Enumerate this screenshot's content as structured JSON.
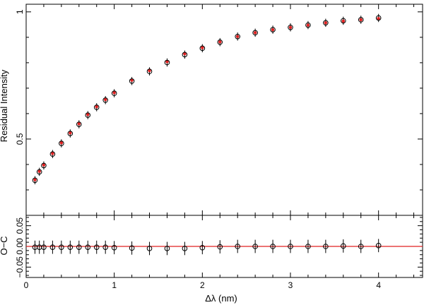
{
  "chart_data": [
    {
      "type": "scatter",
      "panel": "top",
      "xlabel": "Δλ (nm)",
      "ylabel": "Residual Intensity",
      "xlim": [
        0,
        4.5
      ],
      "ylim": [
        0.2,
        1.03
      ],
      "yticks": [
        0.5,
        1
      ],
      "ytick_labels": [
        "0.5",
        "1"
      ],
      "series": [
        {
          "x": [
            0.1,
            0.15,
            0.2,
            0.3,
            0.4,
            0.5,
            0.6,
            0.7,
            0.8,
            0.9,
            1.0,
            1.2,
            1.4,
            1.6,
            1.8,
            2.0,
            2.2,
            2.4,
            2.6,
            2.8,
            3.0,
            3.2,
            3.4,
            3.6,
            3.8,
            4.0
          ],
          "observed": [
            0.338,
            0.371,
            0.396,
            0.441,
            0.483,
            0.522,
            0.558,
            0.594,
            0.625,
            0.653,
            0.68,
            0.728,
            0.766,
            0.801,
            0.832,
            0.857,
            0.881,
            0.903,
            0.918,
            0.93,
            0.939,
            0.948,
            0.957,
            0.965,
            0.969,
            0.976
          ],
          "model": [
            0.34,
            0.373,
            0.398,
            0.443,
            0.485,
            0.524,
            0.56,
            0.596,
            0.627,
            0.655,
            0.682,
            0.731,
            0.769,
            0.804,
            0.835,
            0.859,
            0.882,
            0.903,
            0.918,
            0.93,
            0.939,
            0.948,
            0.957,
            0.964,
            0.969,
            0.974
          ],
          "error": [
            0.016,
            0.016,
            0.016,
            0.016,
            0.016,
            0.016,
            0.016,
            0.016,
            0.016,
            0.016,
            0.016,
            0.016,
            0.016,
            0.016,
            0.016,
            0.016,
            0.016,
            0.016,
            0.016,
            0.016,
            0.016,
            0.016,
            0.016,
            0.016,
            0.016,
            0.016
          ],
          "marker_color": "#000000",
          "model_color": "#e02020"
        }
      ]
    },
    {
      "type": "scatter",
      "panel": "bottom",
      "xlabel": "Δλ (nm)",
      "ylabel": "O−C",
      "xlim": [
        0,
        4.5
      ],
      "ylim": [
        -0.075,
        0.075
      ],
      "yticks": [
        -0.05,
        0,
        0.05
      ],
      "ytick_labels": [
        "−0.05",
        "0.00",
        "0.05"
      ],
      "xticks": [
        0,
        1,
        2,
        3,
        4
      ],
      "xtick_labels": [
        "0",
        "1",
        "2",
        "3",
        "4"
      ],
      "series": [
        {
          "x": [
            0.1,
            0.15,
            0.2,
            0.3,
            0.4,
            0.5,
            0.6,
            0.7,
            0.8,
            0.9,
            1.0,
            1.2,
            1.4,
            1.6,
            1.8,
            2.0,
            2.2,
            2.4,
            2.6,
            2.8,
            3.0,
            3.2,
            3.4,
            3.6,
            3.8,
            4.0
          ],
          "y": [
            -0.002,
            -0.002,
            -0.002,
            -0.002,
            -0.002,
            -0.002,
            -0.002,
            -0.002,
            -0.002,
            -0.002,
            -0.003,
            -0.004,
            -0.005,
            -0.005,
            -0.005,
            -0.003,
            -0.001,
            0.0,
            0.0,
            0.0,
            0.0,
            0.0,
            0.0,
            0.001,
            0.0,
            0.002
          ],
          "error": [
            0.016,
            0.016,
            0.016,
            0.016,
            0.016,
            0.016,
            0.016,
            0.016,
            0.016,
            0.016,
            0.016,
            0.016,
            0.016,
            0.016,
            0.016,
            0.016,
            0.016,
            0.016,
            0.016,
            0.016,
            0.016,
            0.016,
            0.016,
            0.016,
            0.016,
            0.016
          ],
          "reference_line": 0,
          "reference_color": "#e02020"
        }
      ]
    }
  ]
}
